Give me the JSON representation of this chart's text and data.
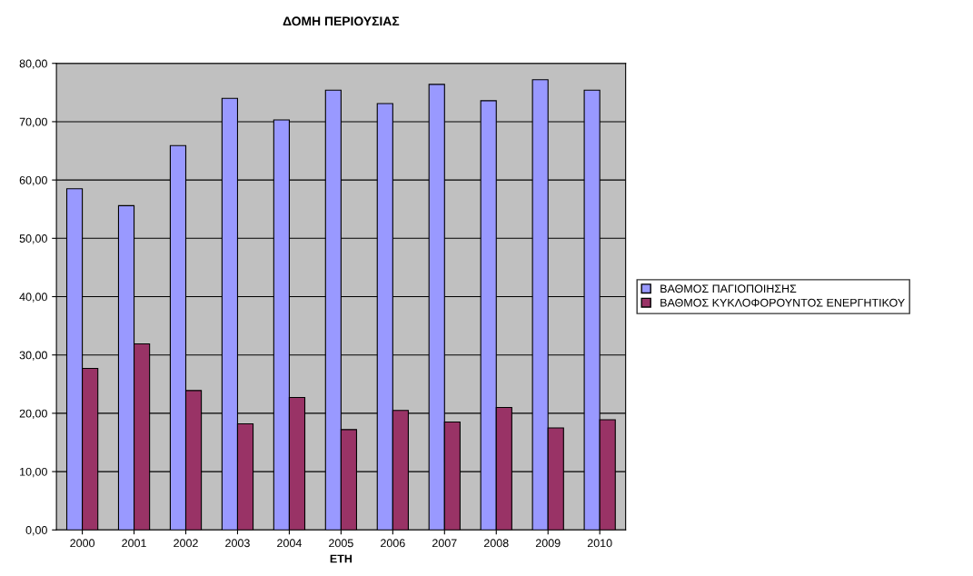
{
  "chart_data": {
    "type": "bar",
    "title": "ΔΟΜΗ ΠΕΡΙΟΥΣΙΑΣ",
    "xlabel": "ΕΤΗ",
    "categories": [
      "2000",
      "2001",
      "2002",
      "2003",
      "2004",
      "2005",
      "2006",
      "2007",
      "2008",
      "2009",
      "2010"
    ],
    "series": [
      {
        "name": "ΒΑΘΜΟΣ ΠΑΓΙΟΠΟΙΗΣΗΣ",
        "color": "#9999ff",
        "values": [
          58.5,
          55.6,
          65.9,
          74.0,
          70.3,
          75.4,
          73.1,
          76.4,
          73.6,
          77.2,
          75.4
        ]
      },
      {
        "name": "ΒΑΘΜΟΣ ΚΥΚΛΟΦΟΡΟΥΝΤΟΣ ΕΝΕΡΓΗΤΙΚΟΥ",
        "color": "#993366",
        "values": [
          27.7,
          31.9,
          23.9,
          18.2,
          22.7,
          17.2,
          20.5,
          18.5,
          21.0,
          17.5,
          18.9
        ]
      }
    ],
    "ylim": [
      0,
      80
    ],
    "yticks": [
      {
        "value": 0,
        "label": "0,00"
      },
      {
        "value": 10,
        "label": "10,00"
      },
      {
        "value": 20,
        "label": "20,00"
      },
      {
        "value": 30,
        "label": "30,00"
      },
      {
        "value": 40,
        "label": "40,00"
      },
      {
        "value": 50,
        "label": "50,00"
      },
      {
        "value": 60,
        "label": "60,00"
      },
      {
        "value": 70,
        "label": "70,00"
      },
      {
        "value": 80,
        "label": "80,00"
      }
    ],
    "grid": "y",
    "legend": "right"
  }
}
